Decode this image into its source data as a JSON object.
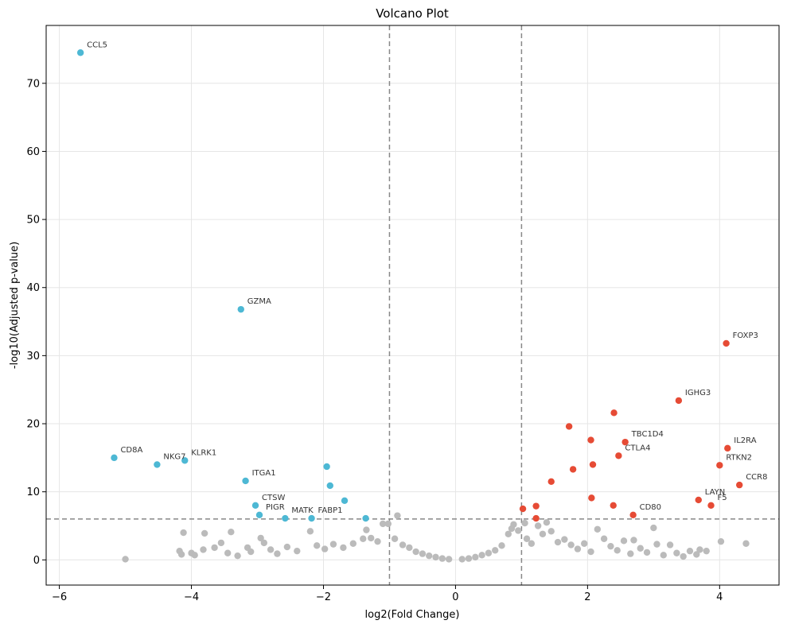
{
  "chart_data": {
    "type": "scatter",
    "title": "Volcano Plot",
    "xlabel": "log2(Fold Change)",
    "ylabel": "-log10(Adjusted p-value)",
    "xlim": [
      -6.2,
      4.9
    ],
    "ylim": [
      -3.7,
      78.5
    ],
    "x_ticks": [
      -6,
      -4,
      -2,
      0,
      2,
      4
    ],
    "y_ticks": [
      0,
      10,
      20,
      30,
      40,
      50,
      60,
      70
    ],
    "grid": true,
    "thresholds": {
      "log2fc": [
        -1,
        1
      ],
      "neg_log10_padj": 6
    },
    "colors": {
      "up": "#e64b35",
      "down": "#4db8d4",
      "ns": "#bbbbbb",
      "threshold": "#888888"
    },
    "series": [
      {
        "color_key": "down",
        "points": [
          {
            "x": -5.68,
            "y": 74.5,
            "label": "CCL5"
          },
          {
            "x": -3.25,
            "y": 36.8,
            "label": "GZMA"
          },
          {
            "x": -5.17,
            "y": 15.0,
            "label": "CD8A"
          },
          {
            "x": -4.52,
            "y": 14.0,
            "label": "NKG7"
          },
          {
            "x": -4.1,
            "y": 14.6,
            "label": "KLRK1"
          },
          {
            "x": -3.18,
            "y": 11.6,
            "label": "ITGA1"
          },
          {
            "x": -3.03,
            "y": 8.0,
            "label": "CTSW"
          },
          {
            "x": -2.97,
            "y": 6.6,
            "label": "PIGR"
          },
          {
            "x": -2.58,
            "y": 6.1,
            "label": "MATK"
          },
          {
            "x": -2.18,
            "y": 6.1,
            "label": "FABP1"
          },
          {
            "x": -1.95,
            "y": 13.7
          },
          {
            "x": -1.9,
            "y": 10.9
          },
          {
            "x": -1.68,
            "y": 8.7
          },
          {
            "x": -1.36,
            "y": 6.1
          }
        ]
      },
      {
        "color_key": "up",
        "points": [
          {
            "x": 4.1,
            "y": 31.8,
            "label": "FOXP3"
          },
          {
            "x": 3.38,
            "y": 23.4,
            "label": "IGHG3"
          },
          {
            "x": 2.4,
            "y": 21.6
          },
          {
            "x": 1.72,
            "y": 19.6
          },
          {
            "x": 2.05,
            "y": 17.6
          },
          {
            "x": 2.57,
            "y": 17.3,
            "label": "TBC1D4"
          },
          {
            "x": 4.12,
            "y": 16.4,
            "label": "IL2RA"
          },
          {
            "x": 2.47,
            "y": 15.3,
            "label": "CTLA4"
          },
          {
            "x": 2.08,
            "y": 14.0
          },
          {
            "x": 4.0,
            "y": 13.9,
            "label": "RTKN2"
          },
          {
            "x": 1.78,
            "y": 13.3
          },
          {
            "x": 1.45,
            "y": 11.5
          },
          {
            "x": 4.3,
            "y": 11.0,
            "label": "CCR8"
          },
          {
            "x": 2.06,
            "y": 9.1
          },
          {
            "x": 3.68,
            "y": 8.8,
            "label": "LAYN"
          },
          {
            "x": 3.87,
            "y": 8.0,
            "label": "F5"
          },
          {
            "x": 1.22,
            "y": 7.9
          },
          {
            "x": 2.39,
            "y": 8.0
          },
          {
            "x": 1.02,
            "y": 7.5
          },
          {
            "x": 2.69,
            "y": 6.6,
            "label": "CD80"
          },
          {
            "x": 1.22,
            "y": 6.1
          }
        ]
      },
      {
        "color_key": "ns",
        "points": [
          {
            "x": -4.12,
            "y": 4.0
          },
          {
            "x": -3.8,
            "y": 3.9
          },
          {
            "x": -3.4,
            "y": 4.1
          },
          {
            "x": -4.18,
            "y": 1.3
          },
          {
            "x": -4.15,
            "y": 0.8
          },
          {
            "x": -4.0,
            "y": 1.0
          },
          {
            "x": -3.95,
            "y": 0.7
          },
          {
            "x": -3.82,
            "y": 1.5
          },
          {
            "x": -3.65,
            "y": 1.8
          },
          {
            "x": -3.55,
            "y": 2.5
          },
          {
            "x": -3.45,
            "y": 1.0
          },
          {
            "x": -3.3,
            "y": 0.6
          },
          {
            "x": -3.15,
            "y": 1.8
          },
          {
            "x": -3.1,
            "y": 1.2
          },
          {
            "x": -2.95,
            "y": 3.2
          },
          {
            "x": -2.9,
            "y": 2.5
          },
          {
            "x": -2.8,
            "y": 1.5
          },
          {
            "x": -2.7,
            "y": 0.9
          },
          {
            "x": -2.55,
            "y": 1.9
          },
          {
            "x": -2.4,
            "y": 1.3
          },
          {
            "x": -2.2,
            "y": 4.2
          },
          {
            "x": -2.1,
            "y": 2.1
          },
          {
            "x": -1.98,
            "y": 1.6
          },
          {
            "x": -1.85,
            "y": 2.3
          },
          {
            "x": -1.7,
            "y": 1.8
          },
          {
            "x": -1.55,
            "y": 2.4
          },
          {
            "x": -1.4,
            "y": 3.1
          },
          {
            "x": -1.35,
            "y": 4.4
          },
          {
            "x": -1.28,
            "y": 3.2
          },
          {
            "x": -1.18,
            "y": 2.7
          },
          {
            "x": -1.1,
            "y": 5.3
          },
          {
            "x": -1.02,
            "y": 5.3
          },
          {
            "x": -0.88,
            "y": 6.5
          },
          {
            "x": -0.92,
            "y": 3.1
          },
          {
            "x": -0.8,
            "y": 2.2
          },
          {
            "x": -0.7,
            "y": 1.8
          },
          {
            "x": -0.6,
            "y": 1.2
          },
          {
            "x": -0.5,
            "y": 0.9
          },
          {
            "x": -0.4,
            "y": 0.6
          },
          {
            "x": -0.3,
            "y": 0.4
          },
          {
            "x": -0.2,
            "y": 0.2
          },
          {
            "x": -0.1,
            "y": 0.1
          },
          {
            "x": 0.1,
            "y": 0.1
          },
          {
            "x": 0.2,
            "y": 0.2
          },
          {
            "x": 0.3,
            "y": 0.4
          },
          {
            "x": 0.4,
            "y": 0.7
          },
          {
            "x": 0.5,
            "y": 1.0
          },
          {
            "x": 0.6,
            "y": 1.4
          },
          {
            "x": 0.7,
            "y": 2.1
          },
          {
            "x": 0.8,
            "y": 3.8
          },
          {
            "x": 0.85,
            "y": 4.6
          },
          {
            "x": 0.88,
            "y": 5.2
          },
          {
            "x": 0.95,
            "y": 4.3
          },
          {
            "x": 1.05,
            "y": 5.4
          },
          {
            "x": 1.08,
            "y": 3.1
          },
          {
            "x": 1.15,
            "y": 2.4
          },
          {
            "x": 1.25,
            "y": 5.0
          },
          {
            "x": 1.32,
            "y": 3.8
          },
          {
            "x": 1.38,
            "y": 5.5
          },
          {
            "x": 1.45,
            "y": 4.2
          },
          {
            "x": 1.55,
            "y": 2.6
          },
          {
            "x": 1.65,
            "y": 3.0
          },
          {
            "x": 1.75,
            "y": 2.2
          },
          {
            "x": 1.85,
            "y": 1.6
          },
          {
            "x": 1.95,
            "y": 2.4
          },
          {
            "x": 2.05,
            "y": 1.2
          },
          {
            "x": 2.15,
            "y": 4.5
          },
          {
            "x": 2.25,
            "y": 3.1
          },
          {
            "x": 2.35,
            "y": 2.0
          },
          {
            "x": 2.45,
            "y": 1.4
          },
          {
            "x": 2.55,
            "y": 2.8
          },
          {
            "x": 2.65,
            "y": 0.9
          },
          {
            "x": 2.7,
            "y": 2.9
          },
          {
            "x": 2.8,
            "y": 1.7
          },
          {
            "x": 2.9,
            "y": 1.1
          },
          {
            "x": 3.0,
            "y": 4.7
          },
          {
            "x": 3.05,
            "y": 2.3
          },
          {
            "x": 3.15,
            "y": 0.7
          },
          {
            "x": 3.25,
            "y": 2.2
          },
          {
            "x": 3.35,
            "y": 1.0
          },
          {
            "x": 3.45,
            "y": 0.5
          },
          {
            "x": 3.55,
            "y": 1.3
          },
          {
            "x": 3.65,
            "y": 0.8
          },
          {
            "x": 3.7,
            "y": 1.5
          },
          {
            "x": 3.8,
            "y": 1.3
          },
          {
            "x": 4.02,
            "y": 2.7
          },
          {
            "x": 4.4,
            "y": 2.4
          },
          {
            "x": -5.0,
            "y": 0.1
          }
        ]
      }
    ]
  }
}
